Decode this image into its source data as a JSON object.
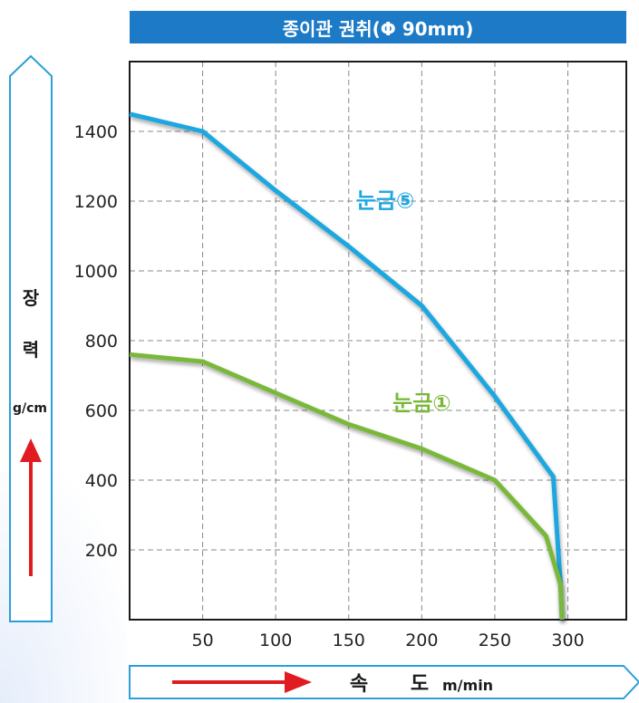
{
  "chart_data": {
    "type": "line",
    "title": "종이관 권취(Φ 90mm)",
    "ylabel": {
      "line1": "장",
      "line2": "력",
      "unit": "g/cm"
    },
    "xlabel": {
      "line1": "속",
      "line2": "도",
      "unit": "m/min"
    },
    "xlim": [
      0,
      340
    ],
    "ylim": [
      0,
      1600
    ],
    "xticks": [
      50,
      100,
      150,
      200,
      250,
      300
    ],
    "yticks": [
      200,
      400,
      600,
      800,
      1000,
      1200,
      1400
    ],
    "grid": true,
    "series": [
      {
        "name": "눈금⑤",
        "color": "#1ea7e1",
        "x": [
          0,
          50,
          100,
          150,
          200,
          250,
          290,
          295,
          296
        ],
        "y": [
          1450,
          1400,
          1230,
          1070,
          900,
          640,
          410,
          100,
          0
        ]
      },
      {
        "name": "눈금①",
        "color": "#7ab83a",
        "x": [
          0,
          50,
          100,
          150,
          200,
          250,
          285,
          295,
          296
        ],
        "y": [
          760,
          740,
          650,
          560,
          490,
          400,
          240,
          100,
          0
        ]
      }
    ]
  }
}
